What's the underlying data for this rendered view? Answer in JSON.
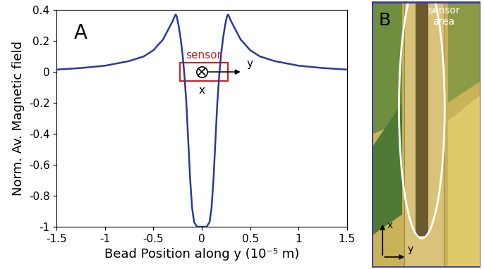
{
  "chart_data": {
    "type": "line",
    "panel_label": "A",
    "x_label": "Bead Position along y (10⁻⁵ m)",
    "y_label": "Norm. Av. Magnetic field",
    "x": [
      -1.5,
      -1.25,
      -1.0,
      -0.75,
      -0.6,
      -0.5,
      -0.4,
      -0.35,
      -0.3,
      -0.28,
      -0.27,
      -0.26,
      -0.24,
      -0.22,
      -0.2,
      -0.18,
      -0.16,
      -0.14,
      -0.12,
      -0.1,
      -0.08,
      -0.05,
      0,
      0.05,
      0.08,
      0.1,
      0.12,
      0.14,
      0.16,
      0.18,
      0.2,
      0.22,
      0.24,
      0.26,
      0.27,
      0.28,
      0.3,
      0.35,
      0.4,
      0.5,
      0.6,
      0.75,
      1.0,
      1.25,
      1.5
    ],
    "values": [
      0.015,
      0.025,
      0.04,
      0.07,
      0.1,
      0.14,
      0.21,
      0.27,
      0.33,
      0.36,
      0.37,
      0.36,
      0.3,
      0.22,
      0.12,
      -0.02,
      -0.2,
      -0.45,
      -0.7,
      -0.88,
      -0.97,
      -1.0,
      -1.0,
      -1.0,
      -0.97,
      -0.88,
      -0.7,
      -0.45,
      -0.2,
      -0.02,
      0.12,
      0.22,
      0.3,
      0.36,
      0.37,
      0.36,
      0.33,
      0.27,
      0.21,
      0.14,
      0.1,
      0.07,
      0.04,
      0.025,
      0.015
    ],
    "color": "#2b3a9c",
    "xlim": [
      -1.5,
      1.5
    ],
    "ylim": [
      -1,
      0.4
    ],
    "xticks": [
      -1.5,
      -1,
      -0.5,
      0,
      0.5,
      1,
      1.5
    ],
    "yticks": [
      -1,
      -0.8,
      -0.6,
      -0.4,
      -0.2,
      0,
      0.2,
      0.4
    ],
    "annotations": {
      "sensor": "sensor",
      "x_axis": "x",
      "y_axis": "y"
    }
  },
  "image_panel": {
    "panel_label": "B",
    "annotation": "sensor\narea",
    "x_axis": "x",
    "y_axis": "y"
  }
}
